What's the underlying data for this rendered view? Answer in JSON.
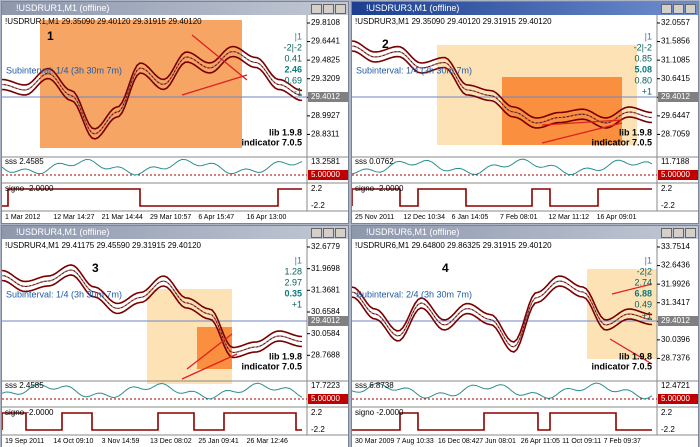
{
  "windows": [
    {
      "title": "!USDRUR1,M1 (offline)",
      "header": "!USDRUR1,M1 29.35090 29.40120 29.31915 29.40120",
      "number": "1",
      "subinterval": "Subinterval: 1/4 (3h 30m 7m)",
      "stats": [
        "|1",
        "-2|-2",
        "0.41",
        "2.46",
        "0.69",
        "-1"
      ],
      "lib": "lib 1.9.8",
      "indicator": "indicator 7.0.5",
      "price_ticks": [
        "29.8108",
        "29.6441",
        "29.4825",
        "29.3209",
        "29.1543",
        "28.9927",
        "28.8311"
      ],
      "current_price": "29.4012",
      "sub1_label": "sss 2.4585",
      "sub1_ticks": [
        "13.2581",
        "5.00000"
      ],
      "sub2_label": "signo -2.0000",
      "sub2_ticks": [
        "2.2",
        "-2.2"
      ],
      "dates": [
        "1 Mar 2012",
        "12 Mar 14:27",
        "21 Mar 14:44",
        "29 Mar 10:57",
        "6 Apr 15:47",
        "16 Apr 13:00"
      ]
    },
    {
      "title": "!USDRUR3,M1 (offline)",
      "header": "!USDRUR3,M1 29.35090 29.40120 29.31915 29.40120",
      "number": "2",
      "subinterval": "Subinterval: 1/4 (3h 30m 7m)",
      "stats": [
        "|1",
        "-2|-2",
        "0.85",
        "5.08",
        "0.80",
        "+1"
      ],
      "lib": "lib 1.9.8",
      "indicator": "indicator 7.0.5",
      "price_ticks": [
        "32.0557",
        "31.5856",
        "31.1085",
        "30.6415",
        "30.1647",
        "29.6447",
        "28.7059"
      ],
      "current_price": "29.4012",
      "sub1_label": "sss 0.0762",
      "sub1_ticks": [
        "11.7188",
        "5.00000"
      ],
      "sub2_label": "signo -2.0000",
      "sub2_ticks": [
        "2.2",
        "-2.2"
      ],
      "dates": [
        "25 Nov 2011",
        "12 Dec 10:34",
        "6 Jan 14:05",
        "7 Feb 08:01",
        "12 Mar 11:12",
        "16 Apr 09:01"
      ]
    },
    {
      "title": "!USDRUR4,M1 (offline)",
      "header": "!USDRUR4,M1 29.41175 29.45590 29.31915 29.40120",
      "number": "3",
      "subinterval": "Subinterval: 1/4 (3h 30m 7m)",
      "stats": [
        "|1",
        "1.28",
        "2.97",
        "0.35",
        "+1"
      ],
      "lib": "lib 1.9.8",
      "indicator": "indicator 7.0.5",
      "price_ticks": [
        "32.6779",
        "31.9698",
        "31.3681",
        "30.6584",
        "30.0584",
        "28.7688"
      ],
      "current_price": "29.4012",
      "sub1_label": "sss 2.4585",
      "sub1_ticks": [
        "17.7223",
        "5.00000"
      ],
      "sub2_label": "signo -2.0000",
      "sub2_ticks": [
        "2.2",
        "-2.2"
      ],
      "dates": [
        "19 Sep 2011",
        "14 Oct 09:10",
        "3 Nov 14:59",
        "13 Dec 08:02",
        "25 Jan 09:41",
        "26 Mar 12:46"
      ]
    },
    {
      "title": "!USDRUR6,M1 (offline)",
      "header": "!USDRUR6,M1 29.64800 29.86325 29.31915 29.40120",
      "number": "4",
      "subinterval": "Subinterval: 2/4 (3h 30m 7m)",
      "stats": [
        "|1",
        "-2|2",
        "2.74",
        "6.88",
        "0.49",
        "+1"
      ],
      "lib": "lib 1.9.8",
      "indicator": "indicator 7.0.5",
      "price_ticks": [
        "33.7514",
        "32.6436",
        "31.9926",
        "31.3417",
        "30.6906",
        "30.0396",
        "28.7376"
      ],
      "current_price": "29.4012",
      "sub1_label": "sss 6.8738",
      "sub1_ticks": [
        "12.4721",
        "5.00000"
      ],
      "sub2_label": "signo -2.0000",
      "sub2_ticks": [
        "2.2",
        "-2.2"
      ],
      "dates": [
        "30 Mar 2009",
        "7 Aug 10:33",
        "16 Dec 08:42",
        "7 Jun 08:01",
        "26 Apr 11:05",
        "11 Oct 09:11",
        "7 Feb 09:37"
      ]
    }
  ]
}
